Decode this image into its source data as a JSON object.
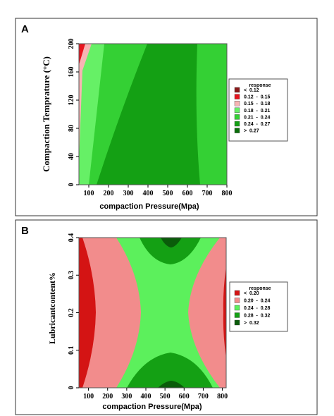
{
  "charts": [
    {
      "panel_label": "A",
      "type": "contour",
      "xlabel": "compaction Pressure(Mpa)",
      "ylabel": "Compaction  Temprature (°C)",
      "x_ticks": [
        "100",
        "200",
        "300",
        "400",
        "500",
        "600",
        "700",
        "800"
      ],
      "y_ticks": [
        "0",
        "40",
        "80",
        "120",
        "160",
        "200"
      ],
      "xlim": [
        50,
        800
      ],
      "ylim": [
        0,
        200
      ],
      "legend_title": "response",
      "legend_position": "right",
      "legend": [
        {
          "label": "<  0.12",
          "color": "#8b1a1a"
        },
        {
          "label": "0.12  -  0.15",
          "color": "#e8141e"
        },
        {
          "label": "0.15  -  0.18",
          "color": "#f7b4b4"
        },
        {
          "label": "0.18  -  0.21",
          "color": "#66f066"
        },
        {
          "label": "0.21  -  0.24",
          "color": "#34d034"
        },
        {
          "label": "0.24  -  0.27",
          "color": "#14a014"
        },
        {
          "label": ">  0.27",
          "color": "#0a6e0a"
        }
      ]
    },
    {
      "panel_label": "B",
      "type": "contour",
      "xlabel": "compaction Pressure(Mpa)",
      "ylabel": "Lubricantcontent%",
      "x_ticks": [
        "100",
        "200",
        "300",
        "400",
        "500",
        "600",
        "700",
        "800"
      ],
      "y_ticks": [
        "0",
        "0.1",
        "0.2",
        "0.3",
        "0.4"
      ],
      "xlim": [
        50,
        820
      ],
      "ylim": [
        0,
        0.4
      ],
      "legend_title": "response",
      "legend_position": "right",
      "legend": [
        {
          "label": "<  0.20",
          "color": "#d41414"
        },
        {
          "label": "0.20  -  0.24",
          "color": "#f28c8c"
        },
        {
          "label": "0.24  -  0.28",
          "color": "#5cf05c"
        },
        {
          "label": "0.28  -  0.32",
          "color": "#14a014"
        },
        {
          "label": ">  0.32",
          "color": "#0a5c0a"
        }
      ]
    }
  ]
}
